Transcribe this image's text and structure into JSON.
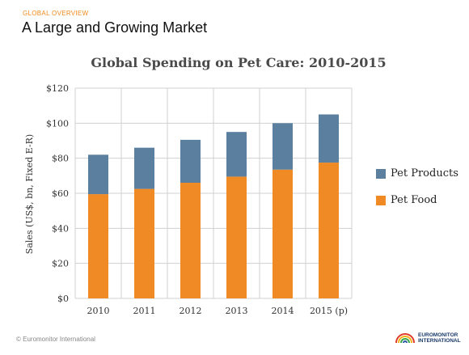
{
  "header": {
    "section_tag": "GLOBAL OVERVIEW",
    "title": "A Large and Growing Market"
  },
  "footer": {
    "copyright": "© Euromonitor International",
    "logo_line1": "EUROMONITOR",
    "logo_line2": "INTERNATIONAL"
  },
  "colors": {
    "pet_food": "#f08a24",
    "pet_products": "#5b7f9e",
    "gridline": "#d0d0d0",
    "brand_orange": "#f08a1c"
  },
  "chart_data": {
    "type": "bar",
    "stacked": true,
    "title": "Global Spending on Pet Care: 2010-2015",
    "xlabel": "",
    "ylabel": "Sales (US$, bn, Fixed E-R)",
    "categories": [
      "2010",
      "2011",
      "2012",
      "2013",
      "2014",
      "2015 (p)"
    ],
    "ylim": [
      0,
      120
    ],
    "yticks": [
      0,
      20,
      40,
      60,
      80,
      100,
      120
    ],
    "ytick_labels": [
      "$0",
      "$20",
      "$40",
      "$60",
      "$80",
      "$100",
      "$120"
    ],
    "grid": true,
    "legend_position": "right",
    "series": [
      {
        "name": "Pet Food",
        "color": "#f08a24",
        "values": [
          59.5,
          62.5,
          66,
          69.5,
          73.5,
          77.5
        ]
      },
      {
        "name": "Pet Products",
        "color": "#5b7f9e",
        "values": [
          22.5,
          23.5,
          24.5,
          25.5,
          26.5,
          27.5
        ]
      }
    ],
    "legend_order": [
      "Pet Products",
      "Pet Food"
    ]
  }
}
